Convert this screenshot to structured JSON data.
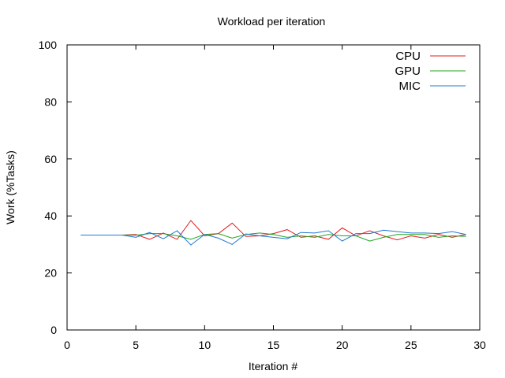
{
  "chart_data": {
    "type": "line",
    "title": "Workload per iteration",
    "xlabel": "Iteration #",
    "ylabel": "Work (%Tasks)",
    "xlim": [
      0,
      30
    ],
    "ylim": [
      0,
      100
    ],
    "xticks": [
      0,
      5,
      10,
      15,
      20,
      25,
      30
    ],
    "yticks": [
      0,
      20,
      40,
      60,
      80,
      100
    ],
    "grid": false,
    "legend_position": "top-right",
    "x": [
      1,
      2,
      3,
      4,
      5,
      6,
      7,
      8,
      9,
      10,
      11,
      12,
      13,
      14,
      15,
      16,
      17,
      18,
      19,
      20,
      21,
      22,
      23,
      24,
      25,
      26,
      27,
      28,
      29
    ],
    "series": [
      {
        "name": "CPU",
        "color": "#e31a1c",
        "values": [
          33.3,
          33.3,
          33.3,
          33.3,
          33.5,
          31.8,
          34.0,
          31.8,
          38.4,
          33.0,
          33.8,
          37.5,
          32.8,
          33.0,
          33.8,
          35.2,
          32.5,
          33.0,
          31.8,
          35.8,
          33.0,
          34.8,
          33.0,
          31.6,
          33.0,
          32.2,
          33.5,
          32.5,
          33.5
        ]
      },
      {
        "name": "GPU",
        "color": "#1fa51f",
        "values": [
          33.3,
          33.3,
          33.3,
          33.3,
          33.2,
          33.8,
          33.8,
          33.0,
          31.8,
          33.5,
          33.8,
          32.2,
          33.5,
          34.0,
          33.5,
          32.5,
          33.0,
          32.5,
          33.5,
          33.0,
          33.0,
          31.2,
          32.5,
          33.5,
          33.5,
          33.5,
          32.5,
          33.0,
          32.8
        ]
      },
      {
        "name": "MIC",
        "color": "#1f78d4",
        "values": [
          33.3,
          33.3,
          33.3,
          33.3,
          32.5,
          34.2,
          32.0,
          34.8,
          29.8,
          33.5,
          32.2,
          30.0,
          33.7,
          33.0,
          32.5,
          32.0,
          34.2,
          34.0,
          34.8,
          31.2,
          33.8,
          33.8,
          35.0,
          34.5,
          34.0,
          34.0,
          33.8,
          34.5,
          33.5
        ]
      }
    ]
  }
}
